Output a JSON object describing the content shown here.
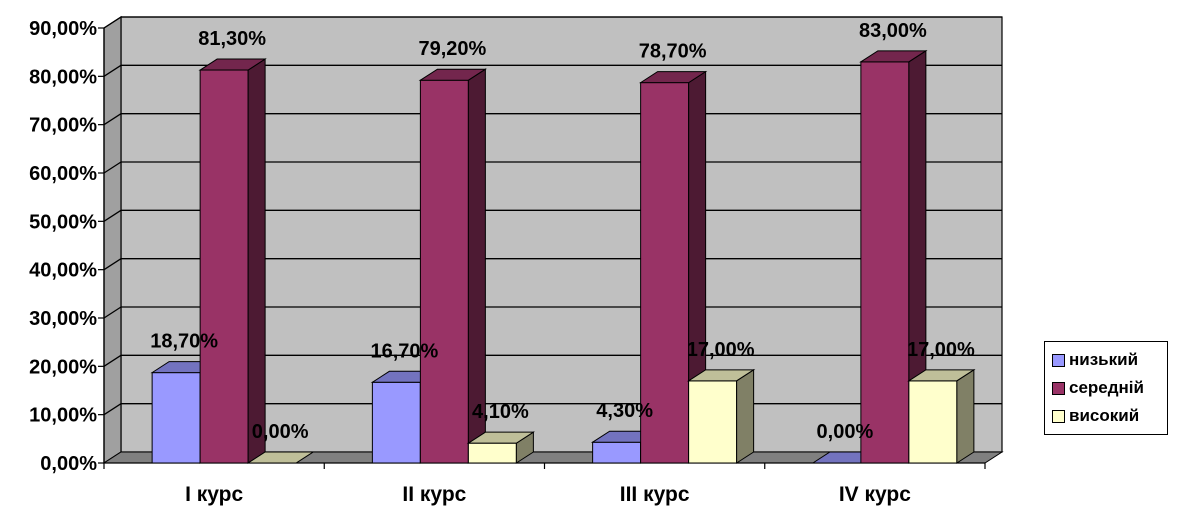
{
  "chart_data": {
    "type": "bar",
    "categories": [
      "I курс",
      "II курс",
      "III курс",
      "IV курс"
    ],
    "series": [
      {
        "name": "низький",
        "values": [
          18.7,
          16.7,
          4.3,
          0.0
        ],
        "labels": [
          "18,70%",
          "16,70%",
          "4,30%",
          "0,00%"
        ],
        "color": "#9999FF"
      },
      {
        "name": "середній",
        "values": [
          81.3,
          79.2,
          78.7,
          83.0
        ],
        "labels": [
          "81,30%",
          "79,20%",
          "78,70%",
          "83,00%"
        ],
        "color": "#993366"
      },
      {
        "name": "високий",
        "values": [
          0.0,
          4.1,
          17.0,
          17.0
        ],
        "labels": [
          "0,00%",
          "4,10%",
          "17,00%",
          "17,00%"
        ],
        "color": "#FFFFCC"
      }
    ],
    "yticks": [
      "0,00%",
      "10,00%",
      "20,00%",
      "30,00%",
      "40,00%",
      "50,00%",
      "60,00%",
      "70,00%",
      "80,00%",
      "90,00%"
    ],
    "ylim": [
      0,
      90
    ],
    "grid": true,
    "three_d": true,
    "wall_color": "#C0C0C0",
    "legend_position": "right"
  },
  "legend": {
    "items": [
      {
        "label": "низький",
        "color": "#9999FF"
      },
      {
        "label": "середній",
        "color": "#993366"
      },
      {
        "label": "високий",
        "color": "#FFFFCC"
      }
    ]
  }
}
